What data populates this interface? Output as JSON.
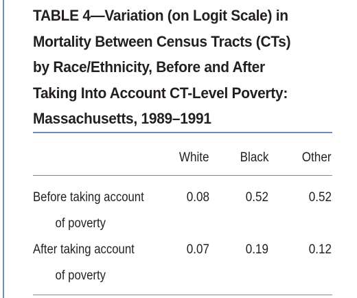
{
  "table": {
    "title_lines": [
      "TABLE 4—Variation (on Logit Scale) in",
      "Mortality Between Census Tracts (CTs)",
      "by Race/Ethnicity, Before and After",
      "Taking Into Account CT-Level Poverty:",
      "Massachusetts, 1989–1991"
    ],
    "columns": [
      "White",
      "Black",
      "Other"
    ],
    "rows": [
      {
        "label_lines": [
          "Before taking account",
          "of poverty"
        ],
        "values": [
          "0.08",
          "0.52",
          "0.52"
        ]
      },
      {
        "label_lines": [
          "After taking account",
          "of poverty"
        ],
        "values": [
          "0.07",
          "0.19",
          "0.12"
        ]
      }
    ],
    "rule_color": "#6d8cb8"
  }
}
